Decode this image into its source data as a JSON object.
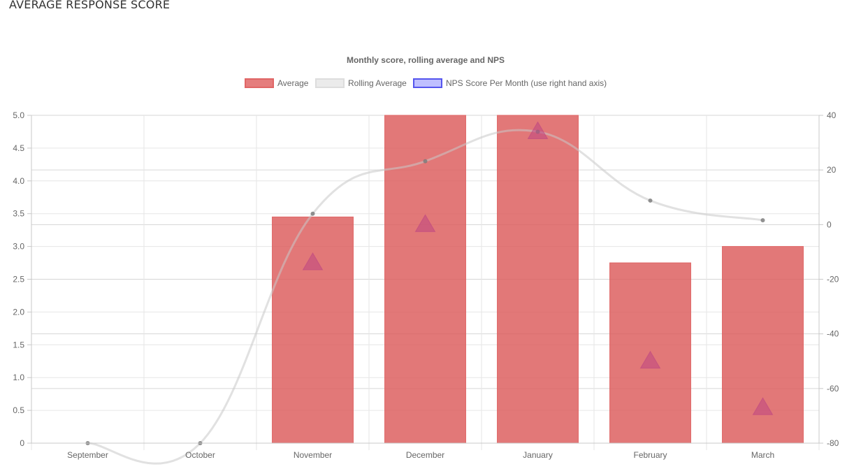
{
  "page": {
    "heading": "AVERAGE RESPONSE SCORE"
  },
  "chart_data": {
    "type": "bar",
    "title": "Monthly score, rolling average and NPS",
    "categories": [
      "September",
      "October",
      "November",
      "December",
      "January",
      "February",
      "March"
    ],
    "y_left": {
      "range": [
        0,
        5
      ],
      "ticks": [
        "0",
        "0.5",
        "1.0",
        "1.5",
        "2.0",
        "2.5",
        "3.0",
        "3.5",
        "4.0",
        "4.5",
        "5.0"
      ]
    },
    "y_right": {
      "range": [
        -80,
        40
      ],
      "ticks": [
        "-80",
        "-60",
        "-40",
        "-20",
        "0",
        "20",
        "40"
      ]
    },
    "grid": true,
    "legend_position": "top",
    "series": [
      {
        "name": "Average",
        "kind": "bar",
        "axis": "left",
        "color": "#e06666",
        "values": [
          null,
          null,
          3.45,
          5.0,
          5.0,
          2.75,
          3.0
        ]
      },
      {
        "name": "Rolling Average",
        "kind": "line",
        "axis": "left",
        "color": "#dddddd",
        "values": [
          0,
          0,
          3.5,
          4.3,
          4.75,
          3.7,
          3.4
        ]
      },
      {
        "name": "NPS Score Per Month (use right hand axis)",
        "kind": "point",
        "axis": "right",
        "color": "#8080ff",
        "marker_color": "#c8507a",
        "values": [
          null,
          null,
          -14,
          0,
          34,
          -50,
          -67
        ]
      }
    ]
  }
}
